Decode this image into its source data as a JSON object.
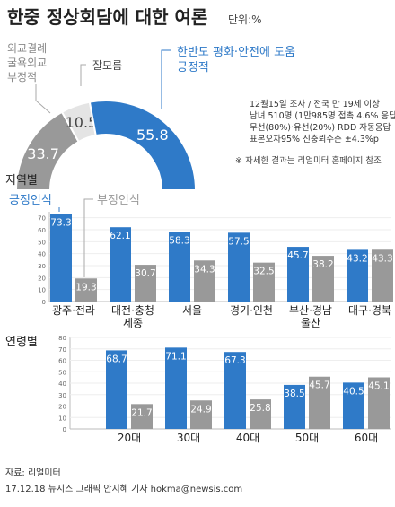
{
  "header": {
    "title": "한중 정상회담에 대한 여론",
    "unit": "단위:%"
  },
  "survey_info": {
    "lines": [
      "12월15일 조사 / 전국 만 19세 이상",
      "남녀 510명 (1만985명 접촉 4.6% 응답)",
      "무선(80%)·유선(20%) RDD 자동응답",
      "표본오차95% 신충뢰수준 ±4.3%p"
    ],
    "note": "※ 자세한 결과는 리얼미터 홈페이지 참조"
  },
  "labels": {
    "positive_legend": "긍정인식",
    "negative_legend": "부정인식"
  },
  "section_titles": {
    "region": "지역별",
    "age": "연령별"
  },
  "footer": {
    "source": "자료: 리얼미터",
    "credit": "17.12.18 뉴시스 그래픽 안지혜 기자 hokma@newsis.com"
  },
  "colors": {
    "positive": "#2f7ac8",
    "negative": "#999999",
    "dont_know": "#e4e4e4",
    "title": "#222222",
    "callout_blue": "#2f7ac8"
  },
  "chart_data": [
    {
      "type": "pie",
      "subtype": "semicircle",
      "slices": [
        {
          "name": "외교결례 굴욕외교 부정적",
          "value": 33.7,
          "label": "33.7"
        },
        {
          "name": "잘모름",
          "value": 10.5,
          "label": "10.5"
        },
        {
          "name": "한반도 평화·안전에 도움 긍정적",
          "value": 55.8,
          "label": "55.8"
        }
      ]
    },
    {
      "type": "bar",
      "title": "지역별",
      "categories": [
        "광주·전라",
        "대전·충청 세종",
        "서울",
        "경기·인천",
        "부산·경남 울산",
        "대구·경북"
      ],
      "series": [
        {
          "name": "긍정인식",
          "values": [
            73.3,
            62.1,
            58.3,
            57.5,
            45.7,
            43.2
          ],
          "labels": [
            "73.3",
            "62.1",
            "58.3",
            "57.5",
            "45.7",
            "43.2"
          ]
        },
        {
          "name": "부정인식",
          "values": [
            19.3,
            30.7,
            34.3,
            32.5,
            38.2,
            43.3
          ],
          "labels": [
            "19.3",
            "30.7",
            "34.3",
            "32.5",
            "38.2",
            "43.3"
          ]
        }
      ],
      "yticks": [
        "0",
        "10",
        "20",
        "30",
        "40",
        "50",
        "60",
        "70"
      ],
      "ylim": [
        0,
        75
      ]
    },
    {
      "type": "bar",
      "title": "연령별",
      "categories": [
        "20대",
        "30대",
        "40대",
        "50대",
        "60대"
      ],
      "series": [
        {
          "name": "긍정인식",
          "values": [
            68.7,
            71.1,
            67.3,
            38.5,
            40.5
          ],
          "labels": [
            "68.7",
            "71.1",
            "67.3",
            "38.5",
            "40.5"
          ]
        },
        {
          "name": "부정인식",
          "values": [
            21.7,
            24.9,
            25.8,
            45.7,
            45.1
          ],
          "labels": [
            "21.7",
            "24.9",
            "25.8",
            "45.7",
            "45.1"
          ]
        }
      ],
      "yticks": [
        "0",
        "10",
        "20",
        "30",
        "40",
        "50",
        "60",
        "70",
        "80"
      ],
      "ylim": [
        0,
        80
      ]
    }
  ]
}
